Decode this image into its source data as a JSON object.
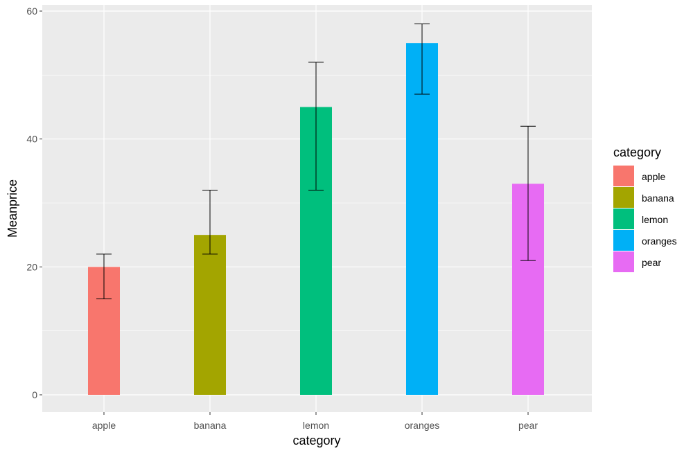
{
  "chart_data": {
    "type": "bar",
    "title": "",
    "xlabel": "category",
    "ylabel": "Meanprice",
    "categories": [
      "apple",
      "banana",
      "lemon",
      "oranges",
      "pear"
    ],
    "values": [
      20,
      25,
      45,
      55,
      33
    ],
    "error_low": [
      15,
      22,
      32,
      47,
      21
    ],
    "error_high": [
      22,
      32,
      52,
      58,
      42
    ],
    "ylim": [
      -3,
      61
    ],
    "y_ticks": [
      0,
      20,
      40,
      60
    ],
    "y_tick_labels": [
      "0",
      "20",
      "40",
      "60"
    ],
    "grid": true,
    "legend": {
      "title": "category",
      "position": "right",
      "entries": [
        "apple",
        "banana",
        "lemon",
        "oranges",
        "pear"
      ]
    },
    "colors": [
      "#F8766D",
      "#A3A500",
      "#00BF7D",
      "#00B0F6",
      "#E76BF3"
    ],
    "panel_background": "#EBEBEB",
    "grid_color": "#FFFFFF"
  }
}
